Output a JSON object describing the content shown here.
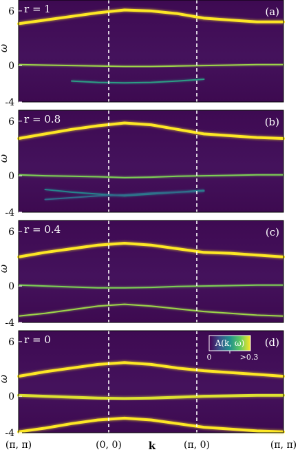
{
  "chart_data": {
    "type": "heatmap",
    "xlabel": "k",
    "ylabel": "ω",
    "x_ticks": [
      "(π, π)",
      "(0, 0)",
      "(π, 0)",
      "(π, π)"
    ],
    "y_ticks": [
      "6",
      "0",
      "-4"
    ],
    "ylim": [
      -4,
      7.2
    ],
    "colors": {
      "background": "#440154",
      "mid": "#21918c",
      "high": "#fde725"
    },
    "colorbar": {
      "label": "A(k, ω)",
      "min_label": "0",
      "max_label": ">0.3",
      "range": [
        0,
        0.3
      ]
    },
    "panels": [
      {
        "tag": "(a)",
        "label": "r = 1",
        "bands": [
          {
            "values": [
              4.6,
              5.0,
              5.4,
              5.8,
              6.1,
              6.0,
              5.7,
              5.2,
              5.0,
              4.8,
              4.8
            ],
            "intensity": 1.0
          },
          {
            "values": [
              0.1,
              0.05,
              0.0,
              -0.05,
              -0.1,
              -0.1,
              -0.05,
              0.0,
              0.05,
              0.1,
              0.1
            ],
            "intensity": 0.85
          },
          {
            "values": [
              null,
              null,
              -1.7,
              -1.85,
              -1.9,
              -1.85,
              -1.7,
              -1.5,
              null,
              null,
              null
            ],
            "intensity": 0.55
          }
        ]
      },
      {
        "tag": "(b)",
        "label": "r = 0.8",
        "bands": [
          {
            "values": [
              4.1,
              4.6,
              5.1,
              5.5,
              5.8,
              5.6,
              5.1,
              4.6,
              4.4,
              4.2,
              4.1
            ],
            "intensity": 1.0
          },
          {
            "values": [
              0.1,
              0.0,
              -0.05,
              -0.1,
              -0.2,
              -0.15,
              -0.05,
              0.0,
              0.05,
              0.1,
              0.1
            ],
            "intensity": 0.8
          },
          {
            "values": [
              null,
              -1.5,
              -1.8,
              -2.0,
              -2.2,
              -2.0,
              -1.8,
              -1.6,
              null,
              null,
              null
            ],
            "intensity": 0.45
          },
          {
            "values": [
              null,
              -2.6,
              -2.4,
              -2.2,
              -2.1,
              -1.9,
              -1.8,
              -1.7,
              null,
              null,
              null
            ],
            "intensity": 0.35
          }
        ]
      },
      {
        "tag": "(c)",
        "label": "r = 0.4",
        "bands": [
          {
            "values": [
              3.2,
              3.7,
              4.1,
              4.5,
              4.7,
              4.5,
              4.1,
              3.7,
              3.6,
              3.4,
              3.2
            ],
            "intensity": 1.0
          },
          {
            "values": [
              0.1,
              0.0,
              -0.1,
              -0.2,
              -0.2,
              -0.15,
              -0.05,
              0.0,
              0.05,
              0.1,
              0.1
            ],
            "intensity": 0.8
          },
          {
            "values": [
              -3.3,
              -3.0,
              -2.6,
              -2.2,
              -2.0,
              -2.2,
              -2.5,
              -2.8,
              -3.0,
              -3.2,
              -3.3
            ],
            "intensity": 0.85
          }
        ]
      },
      {
        "tag": "(d)",
        "label": "r = 0",
        "bands": [
          {
            "values": [
              2.2,
              2.7,
              3.1,
              3.5,
              3.7,
              3.5,
              3.1,
              2.8,
              2.6,
              2.4,
              2.2
            ],
            "intensity": 1.0
          },
          {
            "values": [
              0.1,
              0.0,
              -0.1,
              -0.2,
              -0.25,
              -0.2,
              -0.1,
              0.0,
              0.05,
              0.1,
              0.1
            ],
            "intensity": 0.95
          },
          {
            "values": [
              -3.9,
              -3.5,
              -3.0,
              -2.6,
              -2.4,
              -2.6,
              -3.0,
              -3.4,
              -3.6,
              -3.8,
              -3.9
            ],
            "intensity": 1.0
          }
        ]
      }
    ]
  }
}
